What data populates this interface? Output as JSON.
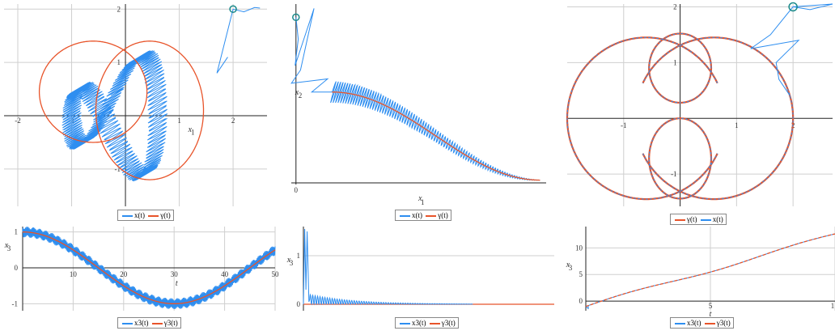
{
  "colors": {
    "x": "#2e8ef0",
    "gamma": "#e8542a",
    "grid": "#cfcfcf",
    "axis": "#222222",
    "marker": "#1a8a8a"
  },
  "chart_data": [
    {
      "id": "p1",
      "type": "line",
      "xlabel": "x1",
      "ylabel": "",
      "xlim": [
        -2,
        2.6
      ],
      "ylim": [
        -1.7,
        2.05
      ],
      "xticks": [
        "-2",
        "-1",
        "1",
        "2"
      ],
      "yticks": [
        "-1",
        "1",
        "2"
      ],
      "legend": [
        "x(t)",
        "γ(t)"
      ],
      "start_marker": [
        2,
        2
      ],
      "series": [
        {
          "name": "x(t)",
          "shape": "oscillating trajectory around two circles"
        },
        {
          "name": "γ(t)",
          "shape": "two circles of radius 1 centered at (-1,0.5) and (1,0.5)"
        }
      ]
    },
    {
      "id": "p2",
      "type": "line",
      "xlabel": "x1",
      "ylabel": "x2",
      "xlim": [
        -0.05,
        5.5
      ],
      "ylim": [
        -0.1,
        4
      ],
      "xticks": [
        "0"
      ],
      "yticks": [],
      "legend": [
        "x(t)",
        "γ(t)"
      ],
      "start_marker": [
        0,
        3.7
      ],
      "series": [
        {
          "name": "x(t)"
        },
        {
          "name": "γ(t)"
        }
      ]
    },
    {
      "id": "p3",
      "type": "line",
      "xlabel": "",
      "ylabel": "",
      "xlim": [
        -2,
        2.7
      ],
      "ylim": [
        -1.55,
        2.05
      ],
      "xticks": [
        "-1",
        "1",
        "2"
      ],
      "yticks": [
        "-1",
        "1",
        "2"
      ],
      "legend": [
        "γ(t)",
        "x(t)"
      ],
      "start_marker": [
        2,
        2
      ],
      "series": [
        {
          "name": "γ(t)"
        },
        {
          "name": "x(t)"
        }
      ]
    },
    {
      "id": "p4",
      "type": "line",
      "xlabel": "t",
      "ylabel": "x3",
      "xlim": [
        0,
        50
      ],
      "ylim": [
        -1.15,
        1.15
      ],
      "xticks": [
        "10",
        "20",
        "30",
        "40",
        "50"
      ],
      "yticks": [
        "-1",
        "0",
        "1"
      ],
      "legend": [
        "x3(t)",
        "γ3(t)"
      ]
    },
    {
      "id": "p5",
      "type": "line",
      "xlabel": "t",
      "ylabel": "x3",
      "xlim": [
        0,
        10
      ],
      "ylim": [
        -0.1,
        1.6
      ],
      "xticks": [],
      "yticks": [
        "0",
        "1"
      ],
      "legend": [
        "x3(t)",
        "γ3(t)"
      ]
    },
    {
      "id": "p6",
      "type": "line",
      "xlabel": "t",
      "ylabel": "x3",
      "xlim": [
        0,
        10
      ],
      "ylim": [
        -1.5,
        14
      ],
      "xticks": [
        "5",
        "1"
      ],
      "yticks": [
        "0",
        "5",
        "10"
      ],
      "legend": [
        "x3(t)",
        "γ3(t)"
      ]
    }
  ]
}
